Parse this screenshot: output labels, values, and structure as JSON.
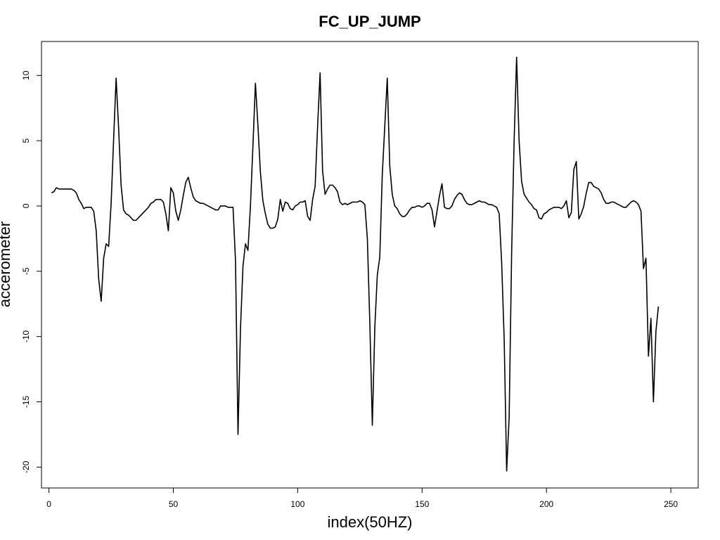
{
  "chart_data": {
    "type": "line",
    "title": "FC_UP_JUMP",
    "xlabel": "index(50HZ)",
    "ylabel": "accerometer",
    "xlim": [
      -3,
      261
    ],
    "ylim": [
      -21.6,
      12.6
    ],
    "x_ticks": [
      0,
      50,
      100,
      150,
      200,
      250
    ],
    "y_ticks": [
      10,
      5,
      0,
      -5,
      -10,
      -15,
      -20
    ],
    "grid": false,
    "legend": "none",
    "series": [
      {
        "name": "accerometer",
        "color": "#000000",
        "values": [
          1.0,
          1.1,
          1.4,
          1.3,
          1.3,
          1.3,
          1.3,
          1.3,
          1.3,
          1.2,
          1.0,
          0.5,
          0.2,
          -0.2,
          -0.1,
          -0.1,
          -0.1,
          -0.4,
          -1.9,
          -5.6,
          -7.3,
          -4.0,
          -2.9,
          -3.1,
          0.2,
          5.1,
          9.8,
          6.0,
          1.6,
          -0.3,
          -0.6,
          -0.7,
          -0.9,
          -1.1,
          -1.1,
          -0.9,
          -0.7,
          -0.5,
          -0.3,
          -0.1,
          0.2,
          0.3,
          0.5,
          0.5,
          0.5,
          0.3,
          -0.6,
          -1.9,
          1.4,
          1.0,
          -0.4,
          -1.1,
          -0.3,
          0.8,
          1.8,
          2.2,
          1.4,
          0.7,
          0.4,
          0.3,
          0.2,
          0.2,
          0.1,
          0.0,
          -0.1,
          -0.2,
          -0.3,
          -0.3,
          0.0,
          0.0,
          0.0,
          -0.1,
          -0.1,
          -0.1,
          -4.2,
          -17.5,
          -9.4,
          -4.6,
          -2.9,
          -3.4,
          0.0,
          4.6,
          9.4,
          6.2,
          2.6,
          0.4,
          -0.6,
          -1.4,
          -1.7,
          -1.7,
          -1.6,
          -1.0,
          0.5,
          -0.4,
          0.3,
          0.2,
          -0.2,
          -0.3,
          0.0,
          0.1,
          0.3,
          0.3,
          0.4,
          -0.8,
          -1.1,
          0.5,
          1.5,
          6.1,
          10.2,
          2.7,
          0.9,
          1.3,
          1.6,
          1.6,
          1.4,
          1.1,
          0.3,
          0.1,
          0.2,
          0.1,
          0.2,
          0.3,
          0.3,
          0.3,
          0.4,
          0.3,
          0.1,
          -2.5,
          -9.0,
          -16.8,
          -9.3,
          -5.3,
          -3.9,
          2.4,
          6.1,
          9.8,
          3.1,
          0.9,
          0.0,
          -0.2,
          -0.6,
          -0.8,
          -0.8,
          -0.6,
          -0.3,
          -0.1,
          -0.1,
          0.0,
          0.0,
          -0.1,
          0.0,
          0.2,
          0.2,
          -0.3,
          -1.6,
          -0.4,
          0.8,
          1.7,
          -0.1,
          -0.2,
          -0.2,
          0.0,
          0.5,
          0.8,
          1.0,
          0.9,
          0.5,
          0.2,
          0.1,
          0.1,
          0.2,
          0.3,
          0.4,
          0.3,
          0.3,
          0.2,
          0.1,
          0.1,
          0.0,
          -0.1,
          -0.6,
          -4.4,
          -10.2,
          -20.3,
          -16.2,
          -3.6,
          5.0,
          11.4,
          5.0,
          1.9,
          0.9,
          0.6,
          0.3,
          0.1,
          -0.2,
          -0.3,
          -0.9,
          -1.0,
          -0.6,
          -0.5,
          -0.3,
          -0.2,
          -0.1,
          -0.1,
          -0.1,
          -0.2,
          0.0,
          0.4,
          -0.9,
          -0.5,
          2.8,
          3.4,
          -1.0,
          -0.6,
          0.0,
          1.0,
          1.8,
          1.8,
          1.5,
          1.4,
          1.3,
          1.0,
          0.5,
          0.2,
          0.2,
          0.3,
          0.3,
          0.2,
          0.1,
          0.0,
          -0.1,
          -0.1,
          0.1,
          0.3,
          0.4,
          0.3,
          0.1,
          -0.4,
          -4.8,
          -4.0,
          -11.5,
          -8.6,
          -15.0,
          -9.6,
          -7.7
        ]
      }
    ]
  }
}
